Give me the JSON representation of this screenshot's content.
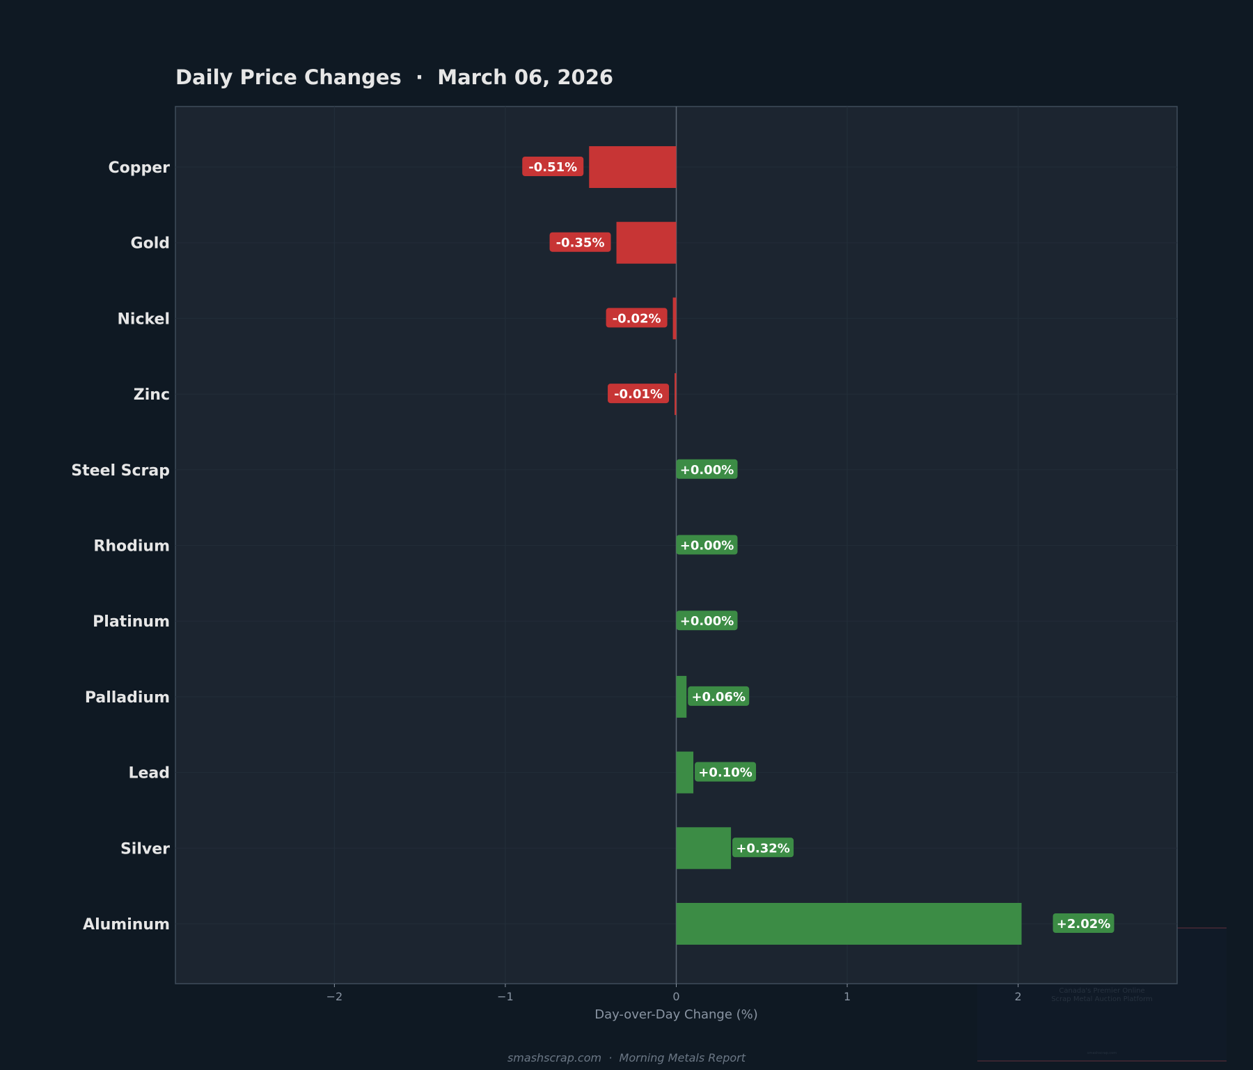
{
  "title": "Daily Price Changes  ·  March 06, 2026",
  "footer": "smashscrap.com  ·  Morning Metals Report",
  "watermark": {
    "tagline_1": "Canada's Premier Online",
    "tagline_2": "Scrap Metal Auction Platform",
    "site": "smashscrap.com"
  },
  "chart_data": {
    "type": "bar",
    "orientation": "horizontal",
    "title": "Daily Price Changes  ·  March 06, 2026",
    "xlabel": "Day-over-Day Change (%)",
    "ylabel": "",
    "xlim": [
      -2.93,
      2.93
    ],
    "xticks": [
      -2,
      -1,
      0,
      1,
      2
    ],
    "xtick_labels": [
      "−2",
      "−1",
      "0",
      "1",
      "2"
    ],
    "grid": true,
    "categories": [
      "Copper",
      "Gold",
      "Nickel",
      "Zinc",
      "Steel Scrap",
      "Rhodium",
      "Platinum",
      "Palladium",
      "Lead",
      "Silver",
      "Aluminum"
    ],
    "values": [
      -0.51,
      -0.35,
      -0.02,
      -0.01,
      0.0,
      0.0,
      0.0,
      0.06,
      0.1,
      0.32,
      2.02
    ],
    "data_labels": [
      "-0.51%",
      "-0.35%",
      "-0.02%",
      "-0.01%",
      "+0.00%",
      "+0.00%",
      "+0.00%",
      "+0.06%",
      "+0.10%",
      "+0.32%",
      "+2.02%"
    ],
    "colors": {
      "negative": "#c73535",
      "positive": "#3c8c45",
      "background": "#0f1923",
      "plot_background": "#1c2530"
    }
  }
}
